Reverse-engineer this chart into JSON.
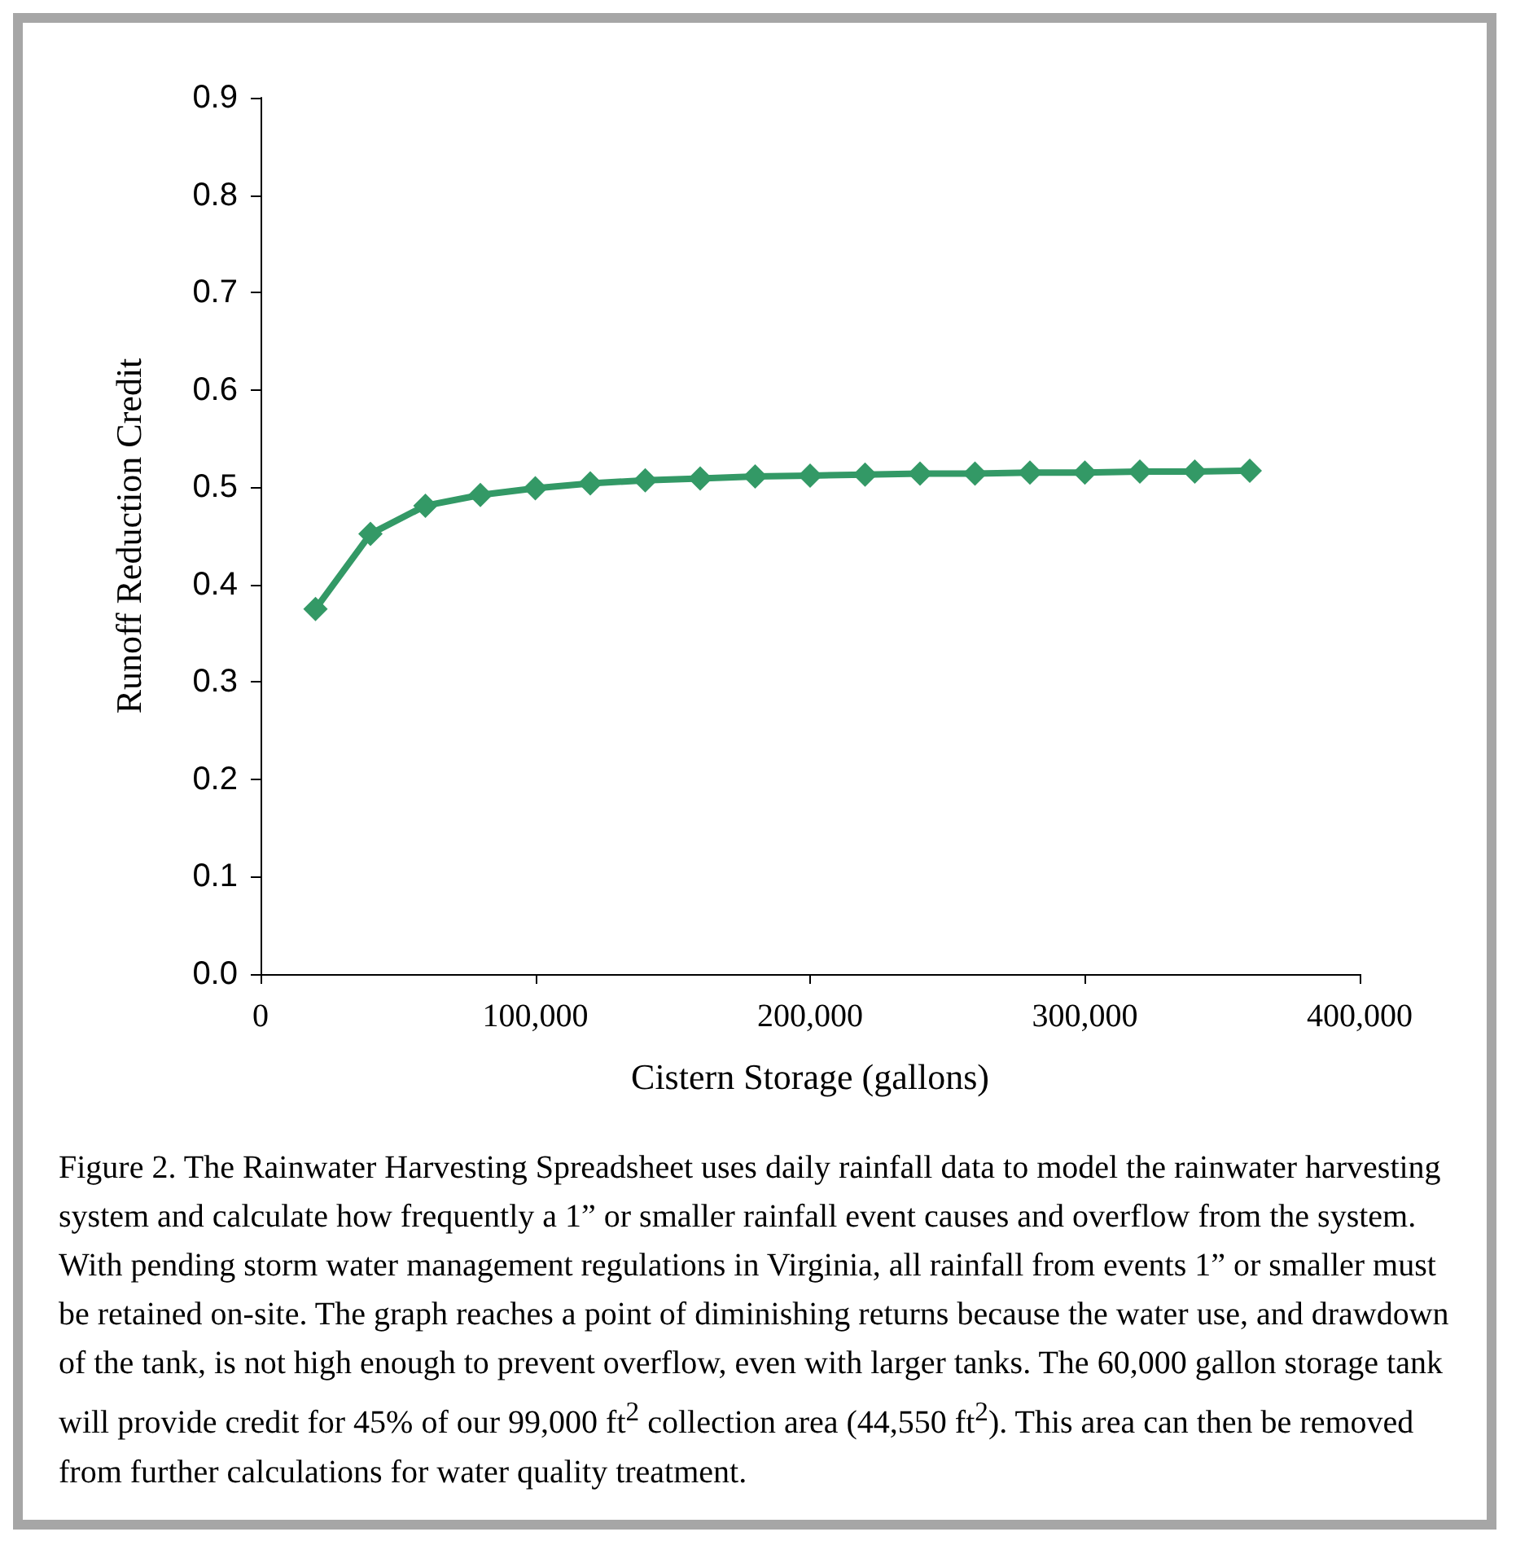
{
  "chart_data": {
    "type": "line",
    "xlabel": "Cistern Storage (gallons)",
    "ylabel": "Runoff Reduction Credit",
    "x": [
      20000,
      40000,
      60000,
      80000,
      100000,
      120000,
      140000,
      160000,
      180000,
      200000,
      220000,
      240000,
      260000,
      280000,
      300000,
      320000,
      340000,
      360000
    ],
    "series": [
      {
        "color": "#339966",
        "values": [
          0.375,
          0.452,
          0.481,
          0.492,
          0.499,
          0.504,
          0.507,
          0.509,
          0.511,
          0.512,
          0.513,
          0.514,
          0.514,
          0.515,
          0.515,
          0.516,
          0.516,
          0.517
        ]
      }
    ],
    "xlim": [
      0,
      400000
    ],
    "xticks": [
      0,
      {
        "value": 100000,
        "label": "100,000"
      },
      {
        "value": 200000,
        "label": "200,000"
      },
      {
        "value": 300000,
        "label": "300,000"
      },
      {
        "value": 400000,
        "label": "400,000"
      }
    ],
    "ylim": [
      0,
      0.9
    ],
    "yticks": [
      {
        "value": 0,
        "label": "0.0"
      },
      0.1,
      0.2,
      0.3,
      0.4,
      0.5,
      0.6,
      0.7,
      0.8,
      0.9
    ],
    "grid": false,
    "marker": "diamond",
    "line_style": "solid",
    "annotations": [
      "Figure 2.  The Rainwater Harvesting Spreadsheet uses daily rainfall data to model the rainwater harvesting system and calculate how frequently a 1” or smaller rainfall event causes and overflow from the system.  With pending storm water management regulations in Virginia, all rainfall from events 1” or smaller must be retained on-site.  The graph reaches a point of diminishing returns because the water use, and drawdown of the tank, is not high enough to prevent overflow, even with larger tanks.  The 60,000 gallon storage tank will provide credit for 45% of our 99,000 ft$^{2}$ collection area (44,550 ft$^{2}$).  This area can then be removed from further calculations for water quality treatment."
    ]
  }
}
